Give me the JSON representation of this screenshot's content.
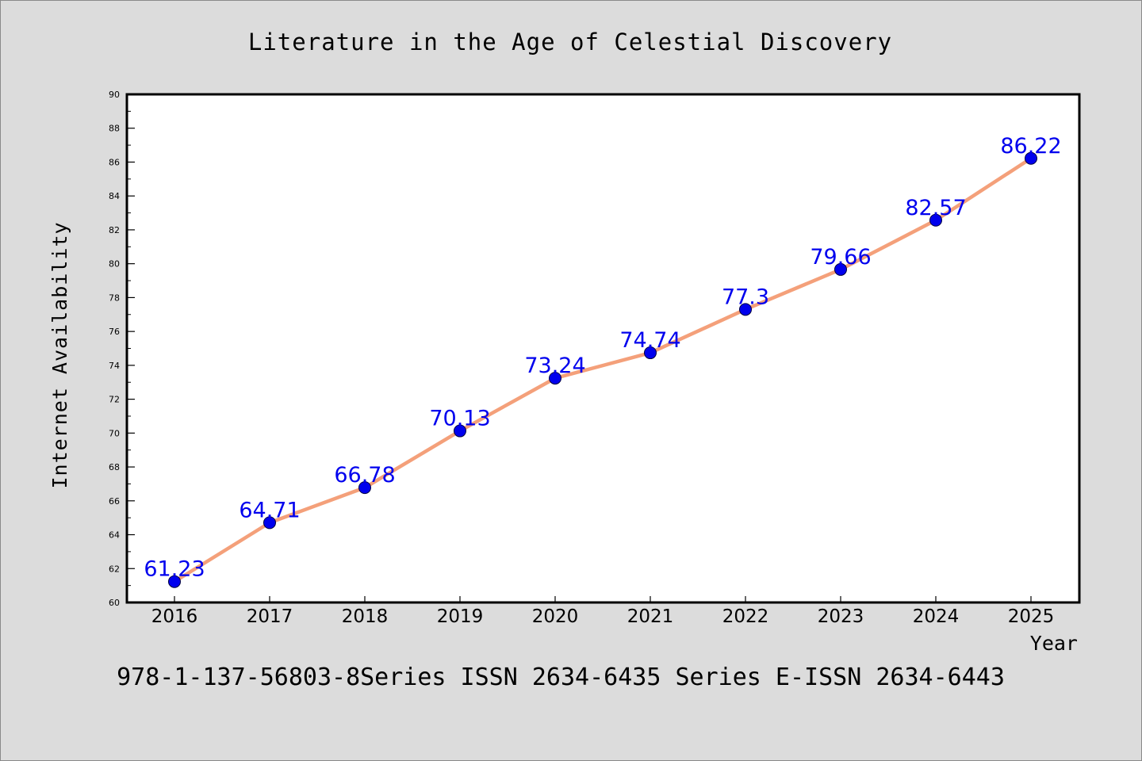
{
  "chart_data": {
    "type": "line",
    "title": "Literature in the Age of Celestial Discovery",
    "xlabel": "Year",
    "ylabel": "Internet Availability",
    "footer": "978-1-137-56803-8Series ISSN 2634-6435 Series E-ISSN 2634-6443",
    "x": [
      "2016",
      "2017",
      "2018",
      "2019",
      "2020",
      "2021",
      "2022",
      "2023",
      "2024",
      "2025"
    ],
    "series": [
      {
        "values": [
          61.23,
          64.71,
          66.78,
          70.13,
          73.24,
          74.74,
          77.3,
          79.66,
          82.57,
          86.22
        ]
      }
    ],
    "ylim": [
      60,
      90
    ],
    "yticks": [
      60,
      62,
      64,
      66,
      68,
      70,
      72,
      74,
      76,
      78,
      80,
      82,
      84,
      86,
      88,
      90
    ],
    "grid": false,
    "legend": "none",
    "colors": {
      "line": "#f4a07a",
      "marker": "#0000ee",
      "label": "#0000ee",
      "background": "#dcdcdc",
      "plot": "#ffffff"
    }
  }
}
